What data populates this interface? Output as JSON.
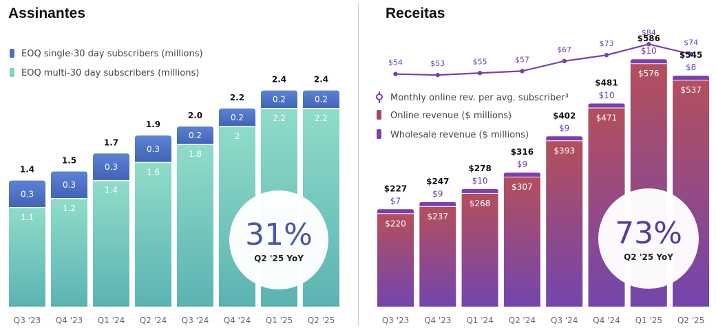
{
  "chart_data": [
    {
      "type": "bar",
      "title": "Assinantes",
      "categories": [
        "Q3 '23",
        "Q4 '23",
        "Q1 '24",
        "Q2 '24",
        "Q3 '24",
        "Q4 '24",
        "Q1 '25",
        "Q2 '25"
      ],
      "series": [
        {
          "name": "EOQ multi-30 day subscribers  (millions)",
          "values": [
            1.1,
            1.2,
            1.4,
            1.6,
            1.8,
            2.0,
            2.2,
            2.2
          ],
          "color": "#7fd4c1"
        },
        {
          "name": "EOQ single-30 day subscribers (millions)",
          "values": [
            0.3,
            0.3,
            0.3,
            0.3,
            0.2,
            0.2,
            0.2,
            0.2
          ],
          "color": "#4a6fc4"
        }
      ],
      "totals": [
        "1.4",
        "1.5",
        "1.7",
        "1.9",
        "2.0",
        "2.2",
        "2.4",
        "2.4"
      ],
      "stacked": true,
      "ylim": [
        0,
        2.45
      ],
      "legend_position": "top-left",
      "callout": {
        "value": "31%",
        "label": "Q2 '25 YoY"
      }
    },
    {
      "type": "bar",
      "title": "Receitas",
      "categories": [
        "Q3 '23",
        "Q4 '23",
        "Q1 '24",
        "Q2 '24",
        "Q3 '24",
        "Q4 '24",
        "Q1 '25",
        "Q2 '25"
      ],
      "series": [
        {
          "name": "Online revenue ($ millions)",
          "values": [
            220,
            237,
            268,
            307,
            393,
            471,
            576,
            537
          ],
          "labels": [
            "$220",
            "$237",
            "$268",
            "$307",
            "$393",
            "$471",
            "$576",
            "$537"
          ],
          "color": "#a8495c"
        },
        {
          "name": "Wholesale revenue ($ millions)",
          "values": [
            7,
            9,
            10,
            9,
            9,
            10,
            10,
            8
          ],
          "labels": [
            "$7",
            "$9",
            "$10",
            "$9",
            "$9",
            "$10",
            "$10",
            "$8"
          ],
          "color": "#7b3fb5"
        },
        {
          "name": "Monthly online rev. per avg. subscriber³",
          "type": "line",
          "values": [
            54,
            53,
            55,
            57,
            67,
            73,
            84,
            74
          ],
          "labels": [
            "$54",
            "$53",
            "$55",
            "$57",
            "$67",
            "$73",
            "$84",
            "$74"
          ],
          "color": "#7b3fb5"
        }
      ],
      "totals": [
        "$227",
        "$247",
        "$278",
        "$316",
        "$402",
        "$481",
        "$586",
        "$545"
      ],
      "stacked": true,
      "ylim": [
        0,
        600
      ],
      "legend_position": "middle-left",
      "callout": {
        "value": "73%",
        "label": "Q2 '25 YoY"
      }
    }
  ]
}
